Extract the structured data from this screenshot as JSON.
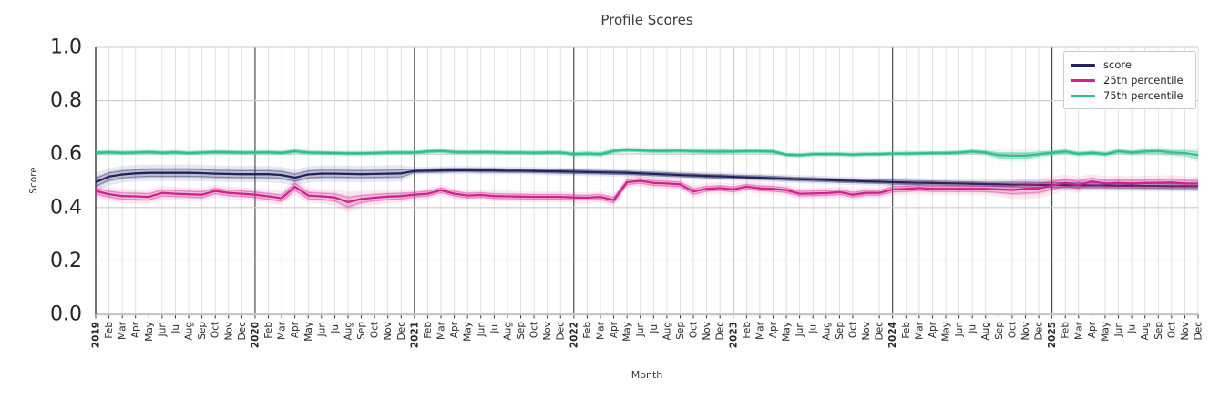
{
  "chart_data": {
    "type": "line",
    "title": "Profile Scores",
    "xlabel": "Month",
    "ylabel": "Score",
    "ylim": [
      0.0,
      1.0
    ],
    "y_tick_labels": [
      "0.0",
      "0.2",
      "0.4",
      "0.6",
      "0.8",
      "1.0"
    ],
    "y_tick_values": [
      0.0,
      0.2,
      0.4,
      0.6,
      0.8,
      1.0
    ],
    "grid": true,
    "legend_position": "upper right",
    "years": [
      "2019",
      "2020",
      "2021",
      "2022",
      "2023",
      "2024",
      "2025"
    ],
    "month_labels": [
      "Feb",
      "Mar",
      "Apr",
      "May",
      "Jun",
      "Jul",
      "Aug",
      "Sep",
      "Oct",
      "Nov",
      "Dec"
    ],
    "series": [
      {
        "name": "score",
        "color": "#22225e",
        "values": [
          0.495,
          0.516,
          0.524,
          0.528,
          0.53,
          0.53,
          0.53,
          0.53,
          0.529,
          0.527,
          0.526,
          0.525,
          0.525,
          0.525,
          0.522,
          0.512,
          0.524,
          0.527,
          0.527,
          0.526,
          0.525,
          0.526,
          0.527,
          0.528,
          0.537,
          0.538,
          0.539,
          0.54,
          0.54,
          0.539,
          0.539,
          0.538,
          0.538,
          0.537,
          0.536,
          0.535,
          0.534,
          0.533,
          0.532,
          0.531,
          0.53,
          0.528,
          0.526,
          0.524,
          0.522,
          0.52,
          0.518,
          0.517,
          0.515,
          0.513,
          0.512,
          0.51,
          0.508,
          0.506,
          0.505,
          0.503,
          0.501,
          0.5,
          0.498,
          0.497,
          0.495,
          0.494,
          0.493,
          0.492,
          0.491,
          0.49,
          0.489,
          0.488,
          0.487,
          0.486,
          0.486,
          0.485,
          0.485,
          0.484,
          0.484,
          0.483,
          0.483,
          0.482,
          0.482,
          0.481,
          0.481,
          0.48,
          0.48,
          0.48
        ],
        "band": [
          0.02,
          0.019,
          0.018,
          0.018,
          0.018,
          0.018,
          0.018,
          0.018,
          0.018,
          0.018,
          0.018,
          0.018,
          0.018,
          0.018,
          0.018,
          0.018,
          0.018,
          0.018,
          0.018,
          0.018,
          0.018,
          0.018,
          0.018,
          0.018,
          0.009,
          0.009,
          0.009,
          0.009,
          0.009,
          0.009,
          0.009,
          0.009,
          0.009,
          0.009,
          0.009,
          0.009,
          0.009,
          0.009,
          0.009,
          0.009,
          0.009,
          0.009,
          0.009,
          0.009,
          0.009,
          0.009,
          0.009,
          0.009,
          0.009,
          0.009,
          0.009,
          0.009,
          0.009,
          0.009,
          0.009,
          0.009,
          0.009,
          0.009,
          0.009,
          0.009,
          0.01,
          0.01,
          0.01,
          0.01,
          0.01,
          0.01,
          0.01,
          0.01,
          0.011,
          0.012,
          0.012,
          0.012,
          0.012,
          0.012,
          0.012,
          0.012,
          0.012,
          0.012,
          0.012,
          0.012,
          0.012,
          0.012,
          0.012,
          0.012
        ]
      },
      {
        "name": "25th percentile",
        "color": "#d3218c",
        "values": [
          0.462,
          0.45,
          0.443,
          0.442,
          0.44,
          0.455,
          0.452,
          0.45,
          0.448,
          0.462,
          0.455,
          0.452,
          0.448,
          0.442,
          0.435,
          0.478,
          0.445,
          0.442,
          0.438,
          0.42,
          0.432,
          0.437,
          0.441,
          0.443,
          0.448,
          0.452,
          0.465,
          0.452,
          0.445,
          0.447,
          0.443,
          0.442,
          0.441,
          0.44,
          0.44,
          0.44,
          0.438,
          0.437,
          0.44,
          0.428,
          0.495,
          0.5,
          0.492,
          0.49,
          0.487,
          0.46,
          0.47,
          0.473,
          0.468,
          0.478,
          0.472,
          0.47,
          0.465,
          0.452,
          0.453,
          0.454,
          0.458,
          0.448,
          0.455,
          0.455,
          0.468,
          0.47,
          0.473,
          0.47,
          0.47,
          0.47,
          0.47,
          0.47,
          0.468,
          0.466,
          0.47,
          0.472,
          0.483,
          0.492,
          0.485,
          0.498,
          0.49,
          0.492,
          0.49,
          0.492,
          0.493,
          0.494,
          0.49,
          0.49
        ],
        "band": [
          0.015,
          0.015,
          0.016,
          0.016,
          0.016,
          0.015,
          0.015,
          0.015,
          0.015,
          0.014,
          0.014,
          0.014,
          0.014,
          0.015,
          0.016,
          0.018,
          0.016,
          0.016,
          0.018,
          0.024,
          0.018,
          0.016,
          0.015,
          0.014,
          0.012,
          0.012,
          0.012,
          0.012,
          0.012,
          0.012,
          0.012,
          0.012,
          0.012,
          0.012,
          0.012,
          0.012,
          0.012,
          0.012,
          0.012,
          0.014,
          0.012,
          0.012,
          0.012,
          0.012,
          0.012,
          0.014,
          0.012,
          0.012,
          0.012,
          0.012,
          0.012,
          0.012,
          0.012,
          0.012,
          0.012,
          0.012,
          0.012,
          0.012,
          0.012,
          0.012,
          0.013,
          0.013,
          0.013,
          0.013,
          0.013,
          0.013,
          0.013,
          0.014,
          0.016,
          0.02,
          0.022,
          0.022,
          0.02,
          0.018,
          0.018,
          0.016,
          0.016,
          0.016,
          0.016,
          0.016,
          0.016,
          0.016,
          0.016,
          0.016
        ]
      },
      {
        "name": "75th percentile",
        "color": "#2fbf8f",
        "values": [
          0.605,
          0.607,
          0.605,
          0.606,
          0.608,
          0.605,
          0.607,
          0.604,
          0.606,
          0.608,
          0.607,
          0.606,
          0.606,
          0.607,
          0.605,
          0.611,
          0.606,
          0.605,
          0.604,
          0.603,
          0.603,
          0.604,
          0.606,
          0.606,
          0.606,
          0.61,
          0.612,
          0.608,
          0.607,
          0.608,
          0.607,
          0.606,
          0.606,
          0.605,
          0.606,
          0.606,
          0.6,
          0.602,
          0.6,
          0.612,
          0.616,
          0.614,
          0.612,
          0.612,
          0.613,
          0.611,
          0.61,
          0.61,
          0.61,
          0.611,
          0.611,
          0.61,
          0.598,
          0.596,
          0.6,
          0.6,
          0.6,
          0.598,
          0.6,
          0.6,
          0.602,
          0.602,
          0.603,
          0.604,
          0.604,
          0.606,
          0.61,
          0.606,
          0.596,
          0.594,
          0.594,
          0.6,
          0.605,
          0.61,
          0.601,
          0.605,
          0.6,
          0.611,
          0.606,
          0.61,
          0.612,
          0.606,
          0.604,
          0.596
        ],
        "band": [
          0.007,
          0.007,
          0.007,
          0.007,
          0.007,
          0.007,
          0.007,
          0.007,
          0.007,
          0.007,
          0.007,
          0.007,
          0.007,
          0.007,
          0.007,
          0.007,
          0.007,
          0.007,
          0.007,
          0.007,
          0.007,
          0.007,
          0.007,
          0.007,
          0.007,
          0.007,
          0.007,
          0.007,
          0.007,
          0.007,
          0.007,
          0.007,
          0.007,
          0.007,
          0.007,
          0.007,
          0.008,
          0.008,
          0.008,
          0.008,
          0.008,
          0.008,
          0.008,
          0.008,
          0.008,
          0.008,
          0.008,
          0.008,
          0.007,
          0.007,
          0.007,
          0.007,
          0.007,
          0.007,
          0.007,
          0.007,
          0.007,
          0.007,
          0.007,
          0.007,
          0.007,
          0.007,
          0.007,
          0.007,
          0.007,
          0.007,
          0.007,
          0.008,
          0.012,
          0.014,
          0.014,
          0.01,
          0.008,
          0.008,
          0.008,
          0.008,
          0.008,
          0.008,
          0.008,
          0.009,
          0.01,
          0.01,
          0.012,
          0.016
        ]
      }
    ]
  },
  "colors": {
    "grid_minor": "#dadada",
    "grid_major_h": "#cccccc",
    "year_line": "#2b2b2b",
    "spine": "#262626",
    "tick_text": "#262626",
    "label_text": "#3a3a3a"
  }
}
